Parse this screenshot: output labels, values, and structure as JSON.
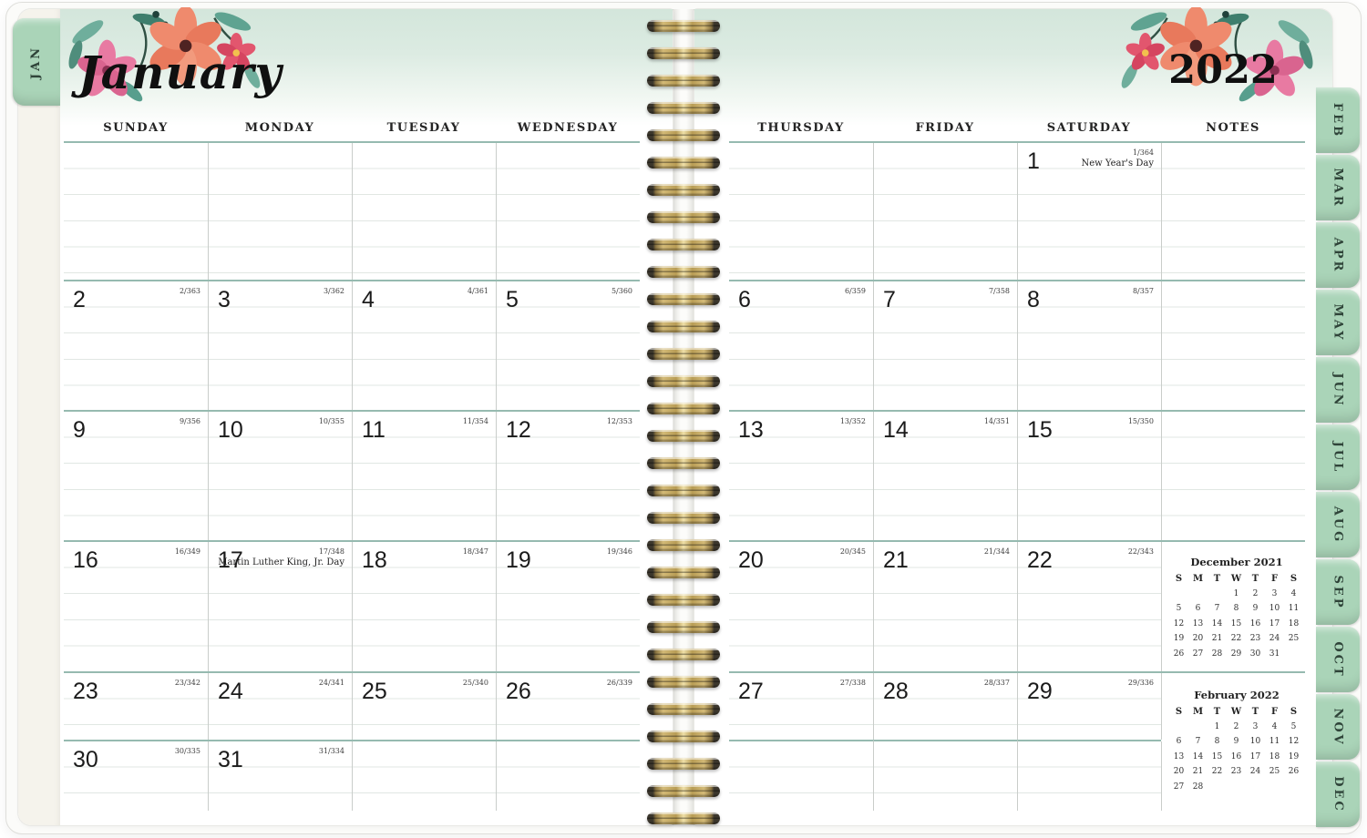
{
  "planner": {
    "month_title": "January",
    "year": "2022",
    "jan_tab": "JAN",
    "month_tabs": [
      "FEB",
      "MAR",
      "APR",
      "MAY",
      "JUN",
      "JUL",
      "AUG",
      "SEP",
      "OCT",
      "NOV",
      "DEC"
    ],
    "left_day_headers": [
      "SUNDAY",
      "MONDAY",
      "TUESDAY",
      "WEDNESDAY"
    ],
    "right_day_headers": [
      "THURSDAY",
      "FRIDAY",
      "SATURDAY",
      "NOTES"
    ],
    "colors": {
      "tab_green": "#aad4b8",
      "teal_line": "#96bab0",
      "header_mint": "#d3e6db",
      "spiral_gold": "#c9b06a",
      "flower_coral": "#ef8a6d",
      "flower_pink": "#e87aa2",
      "leaf_teal": "#5ca08e"
    }
  },
  "weeks": [
    {
      "left": [
        null,
        null,
        null,
        null
      ],
      "right": [
        null,
        null,
        {
          "day": "1",
          "code": "1/364",
          "note": "New Year's Day"
        }
      ]
    },
    {
      "left": [
        {
          "day": "2",
          "code": "2/363"
        },
        {
          "day": "3",
          "code": "3/362"
        },
        {
          "day": "4",
          "code": "4/361"
        },
        {
          "day": "5",
          "code": "5/360"
        }
      ],
      "right": [
        {
          "day": "6",
          "code": "6/359"
        },
        {
          "day": "7",
          "code": "7/358"
        },
        {
          "day": "8",
          "code": "8/357"
        }
      ]
    },
    {
      "left": [
        {
          "day": "9",
          "code": "9/356"
        },
        {
          "day": "10",
          "code": "10/355"
        },
        {
          "day": "11",
          "code": "11/354"
        },
        {
          "day": "12",
          "code": "12/353"
        }
      ],
      "right": [
        {
          "day": "13",
          "code": "13/352"
        },
        {
          "day": "14",
          "code": "14/351"
        },
        {
          "day": "15",
          "code": "15/350"
        }
      ]
    },
    {
      "left": [
        {
          "day": "16",
          "code": "16/349"
        },
        {
          "day": "17",
          "code": "17/348",
          "note": "Martin Luther King, Jr. Day"
        },
        {
          "day": "18",
          "code": "18/347"
        },
        {
          "day": "19",
          "code": "19/346"
        }
      ],
      "right": [
        {
          "day": "20",
          "code": "20/345"
        },
        {
          "day": "21",
          "code": "21/344"
        },
        {
          "day": "22",
          "code": "22/343"
        }
      ]
    },
    {
      "left": [
        {
          "day": "23",
          "code": "23/342"
        },
        {
          "day": "24",
          "code": "24/341"
        },
        {
          "day": "25",
          "code": "25/340"
        },
        {
          "day": "26",
          "code": "26/339"
        }
      ],
      "right": [
        {
          "day": "27",
          "code": "27/338"
        },
        {
          "day": "28",
          "code": "28/337"
        },
        {
          "day": "29",
          "code": "29/336"
        }
      ]
    },
    {
      "left": [
        {
          "day": "30",
          "code": "30/335"
        },
        {
          "day": "31",
          "code": "31/334"
        },
        null,
        null
      ],
      "right": [
        null,
        null,
        null
      ]
    }
  ],
  "mini_calendars": [
    {
      "title": "December 2021",
      "day_letters": [
        "S",
        "M",
        "T",
        "W",
        "T",
        "F",
        "S"
      ],
      "rows": [
        [
          "",
          "",
          "",
          "1",
          "2",
          "3",
          "4"
        ],
        [
          "5",
          "6",
          "7",
          "8",
          "9",
          "10",
          "11"
        ],
        [
          "12",
          "13",
          "14",
          "15",
          "16",
          "17",
          "18"
        ],
        [
          "19",
          "20",
          "21",
          "22",
          "23",
          "24",
          "25"
        ],
        [
          "26",
          "27",
          "28",
          "29",
          "30",
          "31",
          ""
        ]
      ]
    },
    {
      "title": "February 2022",
      "day_letters": [
        "S",
        "M",
        "T",
        "W",
        "T",
        "F",
        "S"
      ],
      "rows": [
        [
          "",
          "",
          "1",
          "2",
          "3",
          "4",
          "5"
        ],
        [
          "6",
          "7",
          "8",
          "9",
          "10",
          "11",
          "12"
        ],
        [
          "13",
          "14",
          "15",
          "16",
          "17",
          "18",
          "19"
        ],
        [
          "20",
          "21",
          "22",
          "23",
          "24",
          "25",
          "26"
        ],
        [
          "27",
          "28",
          "",
          "",
          "",
          "",
          ""
        ]
      ]
    }
  ]
}
